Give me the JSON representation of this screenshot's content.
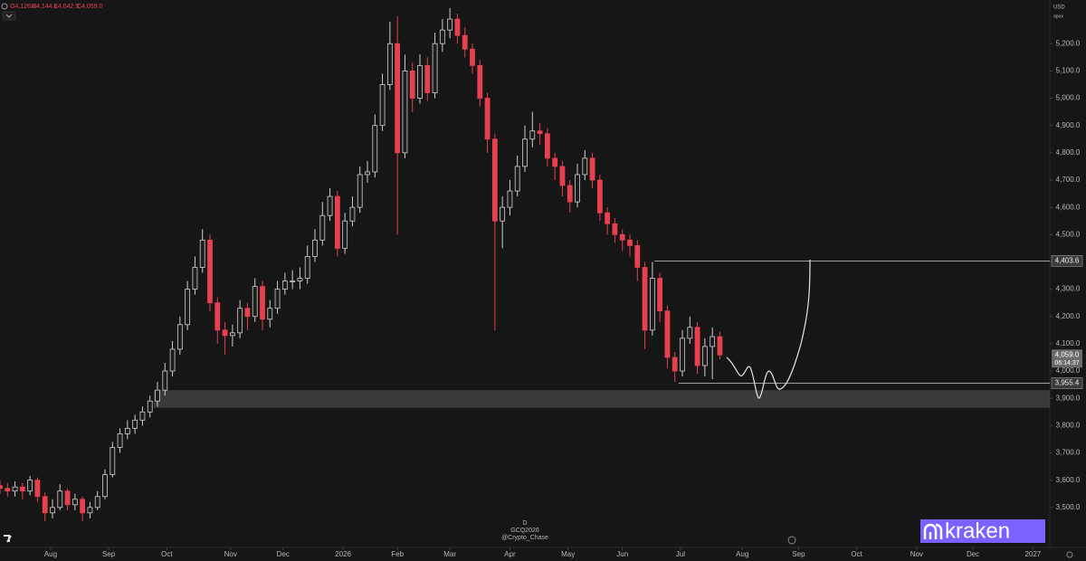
{
  "chart_data": {
    "type": "candlestick",
    "ohlc_labels": [
      "O4,126.0",
      "H4,144.0",
      "L4,042.5",
      "C4,059.0"
    ],
    "currency": "USD",
    "scale_mode": "apox",
    "interval": "D",
    "symbol": "GCQ2026",
    "author": "@Crypto_Chase",
    "brand": "kraken",
    "up_color": "#cfcfcf",
    "down_color": "#e8404f",
    "x": [
      0,
      4,
      8,
      12,
      16,
      20,
      24,
      28,
      32,
      36,
      40,
      44,
      48,
      52,
      56,
      60,
      64,
      68,
      72,
      76,
      80,
      84,
      88,
      92,
      96,
      100,
      104,
      108,
      112,
      116,
      120,
      124,
      128,
      132,
      136,
      140,
      144,
      148,
      152,
      156,
      160,
      164,
      168,
      172,
      176,
      180,
      184,
      188,
      192,
      196,
      200,
      204,
      208,
      212,
      216,
      220,
      224,
      228,
      232,
      236,
      240,
      244,
      248,
      252,
      256,
      260,
      264,
      268,
      272,
      276,
      280,
      284,
      288,
      292,
      296,
      300,
      304,
      308,
      312,
      316,
      320,
      324,
      328,
      332,
      336,
      340,
      344,
      348,
      352,
      356,
      360,
      364,
      368,
      372,
      376,
      380,
      384
    ],
    "open": [
      3580,
      3570,
      3560,
      3575,
      3560,
      3600,
      3540,
      3480,
      3500,
      3560,
      3510,
      3530,
      3480,
      3500,
      3540,
      3620,
      3720,
      3770,
      3790,
      3820,
      3850,
      3890,
      3930,
      4000,
      4080,
      4170,
      4300,
      4380,
      4480,
      4250,
      4150,
      4130,
      4140,
      4230,
      4200,
      4310,
      4190,
      4230,
      4300,
      4330,
      4330,
      4340,
      4420,
      4480,
      4570,
      4640,
      4450,
      4550,
      4600,
      4720,
      4730,
      4900,
      5050,
      5200,
      4800,
      5100,
      5000,
      5120,
      5020,
      5200,
      5250,
      5290,
      5230,
      5180,
      5120,
      5000,
      4850,
      4550,
      4600,
      4660,
      4750,
      4850,
      4880,
      4870,
      4780,
      4750,
      4680,
      4620,
      4720,
      4780,
      4700,
      4580,
      4540,
      4500,
      4480,
      4460,
      4380,
      4150,
      4340,
      4220,
      4050,
      4000,
      4120,
      4160,
      4020,
      4090,
      4126
    ],
    "high": [
      3600,
      3590,
      3595,
      3590,
      3615,
      3610,
      3555,
      3530,
      3585,
      3570,
      3550,
      3540,
      3520,
      3560,
      3640,
      3740,
      3790,
      3820,
      3840,
      3870,
      3910,
      3960,
      4030,
      4110,
      4200,
      4330,
      4420,
      4520,
      4500,
      4270,
      4180,
      4170,
      4260,
      4250,
      4340,
      4330,
      4260,
      4330,
      4360,
      4370,
      4380,
      4460,
      4520,
      4620,
      4670,
      4660,
      4580,
      4640,
      4750,
      4770,
      4940,
      5090,
      5280,
      5300,
      5160,
      5130,
      5160,
      5150,
      5240,
      5290,
      5330,
      5310,
      5260,
      5200,
      5140,
      5020,
      4870,
      4640,
      4700,
      4790,
      4900,
      4950,
      4910,
      4890,
      4800,
      4770,
      4700,
      4760,
      4810,
      4800,
      4720,
      4600,
      4560,
      4520,
      4500,
      4480,
      4400,
      4400,
      4360,
      4240,
      4070,
      4150,
      4200,
      4180,
      4120,
      4160,
      4144
    ],
    "low": [
      3550,
      3540,
      3540,
      3530,
      3545,
      3520,
      3450,
      3460,
      3490,
      3490,
      3490,
      3450,
      3460,
      3490,
      3530,
      3610,
      3700,
      3750,
      3770,
      3800,
      3830,
      3870,
      3910,
      3980,
      4060,
      4150,
      4280,
      4360,
      4220,
      4100,
      4060,
      4090,
      4120,
      4150,
      4180,
      4150,
      4160,
      4210,
      4280,
      4300,
      4300,
      4320,
      4400,
      4460,
      4550,
      4420,
      4430,
      4530,
      4580,
      4690,
      4710,
      4880,
      5030,
      4500,
      4780,
      4950,
      4980,
      4990,
      5000,
      5170,
      5220,
      5200,
      5150,
      5090,
      4970,
      4800,
      4150,
      4450,
      4570,
      4640,
      4730,
      4820,
      4830,
      4750,
      4700,
      4640,
      4580,
      4600,
      4700,
      4670,
      4550,
      4500,
      4470,
      4440,
      4420,
      4330,
      4080,
      4130,
      4180,
      4010,
      3960,
      3980,
      4100,
      3990,
      3980,
      3970,
      4042.5
    ],
    "close": [
      3570,
      3560,
      3575,
      3560,
      3600,
      3540,
      3480,
      3500,
      3560,
      3510,
      3530,
      3480,
      3500,
      3540,
      3620,
      3720,
      3770,
      3790,
      3820,
      3850,
      3890,
      3930,
      4000,
      4080,
      4170,
      4300,
      4380,
      4480,
      4250,
      4150,
      4130,
      4140,
      4230,
      4200,
      4310,
      4190,
      4230,
      4300,
      4330,
      4330,
      4340,
      4420,
      4480,
      4570,
      4640,
      4450,
      4550,
      4600,
      4720,
      4730,
      4900,
      5050,
      5200,
      4800,
      5100,
      5000,
      5120,
      5020,
      5200,
      5250,
      5290,
      5230,
      5180,
      5120,
      5000,
      4850,
      4550,
      4600,
      4660,
      4750,
      4850,
      4880,
      4870,
      4780,
      4750,
      4680,
      4620,
      4720,
      4780,
      4700,
      4580,
      4540,
      4500,
      4480,
      4460,
      4380,
      4150,
      4340,
      4220,
      4050,
      4000,
      4120,
      4160,
      4020,
      4090,
      4126,
      4059
    ],
    "xlim": [
      0,
      560
    ],
    "xticks": [
      {
        "value": 27,
        "label": "Aug"
      },
      {
        "value": 58,
        "label": "Sep"
      },
      {
        "value": 89,
        "label": "Oct"
      },
      {
        "value": 123,
        "label": "Nov"
      },
      {
        "value": 151,
        "label": "Dec"
      },
      {
        "value": 183,
        "label": "2026"
      },
      {
        "value": 212,
        "label": "Feb"
      },
      {
        "value": 240,
        "label": "Mar"
      },
      {
        "value": 272,
        "label": "Apr"
      },
      {
        "value": 303,
        "label": "May"
      },
      {
        "value": 332,
        "label": "Jun"
      },
      {
        "value": 363,
        "label": "Jul"
      },
      {
        "value": 396,
        "label": "Aug"
      },
      {
        "value": 426,
        "label": "Sep"
      },
      {
        "value": 457,
        "label": "Oct"
      },
      {
        "value": 489,
        "label": "Nov"
      },
      {
        "value": 519,
        "label": "Dec"
      },
      {
        "value": 551,
        "label": "2027"
      }
    ],
    "ylim": [
      3370,
      5360
    ],
    "yticks": [
      {
        "value": 3500,
        "label": "3,500.0"
      },
      {
        "value": 3600,
        "label": "3,600.0"
      },
      {
        "value": 3700,
        "label": "3,700.0"
      },
      {
        "value": 3800,
        "label": "3,800.0"
      },
      {
        "value": 3900,
        "label": "3,900.0"
      },
      {
        "value": 4000,
        "label": "4,000.0"
      },
      {
        "value": 4100,
        "label": "4,100.0"
      },
      {
        "value": 4200,
        "label": "4,200.0"
      },
      {
        "value": 4300,
        "label": "4,300.0"
      },
      {
        "value": 4400,
        "label": "4,400.0"
      },
      {
        "value": 4500,
        "label": "4,500.0"
      },
      {
        "value": 4600,
        "label": "4,600.0"
      },
      {
        "value": 4700,
        "label": "4,700.0"
      },
      {
        "value": 4800,
        "label": "4,800.0"
      },
      {
        "value": 4900,
        "label": "4,900.0"
      },
      {
        "value": 5000,
        "label": "5,000.0"
      },
      {
        "value": 5100,
        "label": "5,100.0"
      },
      {
        "value": 5200,
        "label": "5,200.0"
      }
    ],
    "zone": [
      3865,
      3930
    ],
    "levels": [
      {
        "value": 4403.6,
        "label": "4,403.6"
      },
      {
        "value": 3955.4,
        "label": "3,955.4"
      }
    ],
    "last_price": {
      "value": 4059,
      "label": "4,059.0"
    },
    "countdown": "06:14:37"
  }
}
